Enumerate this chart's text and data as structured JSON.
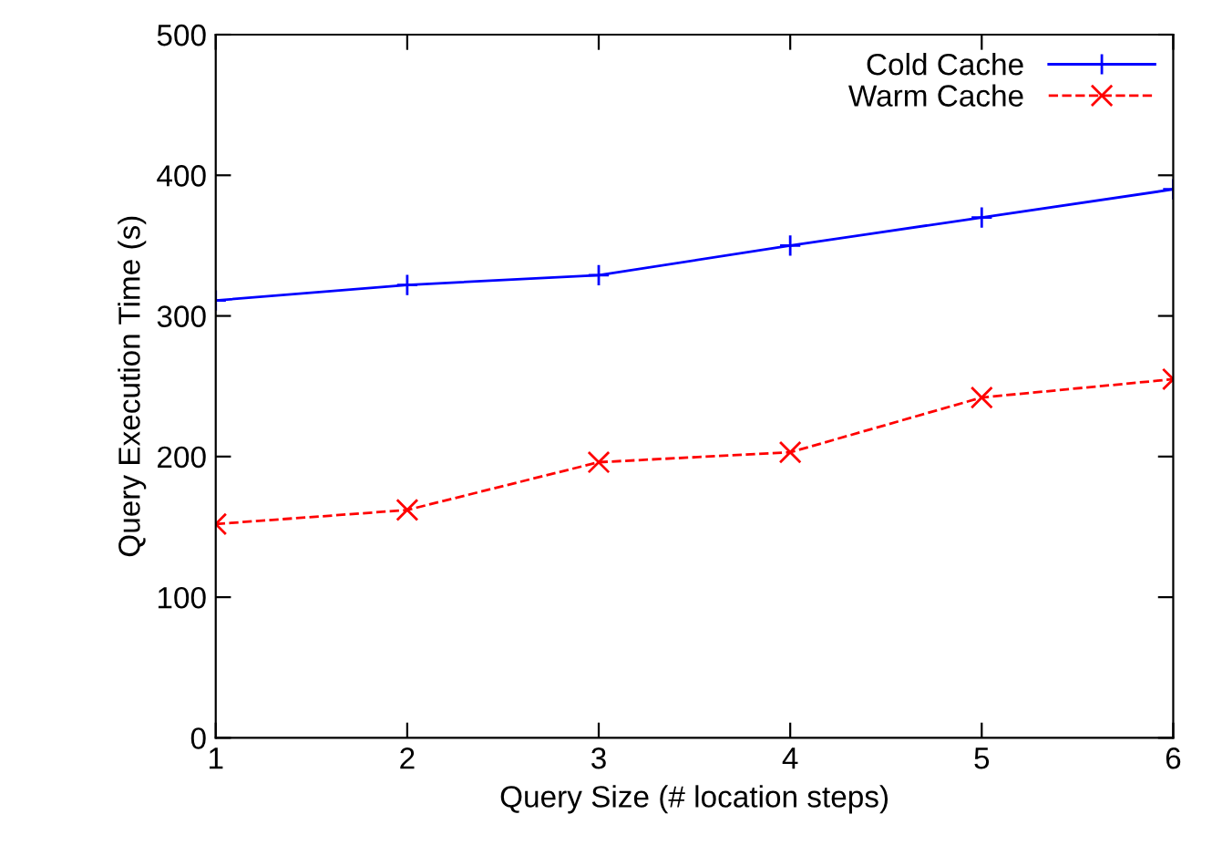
{
  "chart_data": {
    "type": "line",
    "xlabel": "Query Size (# location steps)",
    "ylabel": "Query Execution Time (s)",
    "x": [
      1,
      2,
      3,
      4,
      5,
      6
    ],
    "series": [
      {
        "name": "Cold Cache",
        "color": "#0000ff",
        "marker": "plus",
        "line_style": "solid",
        "values": [
          311,
          322,
          329,
          350,
          370,
          390
        ]
      },
      {
        "name": "Warm Cache",
        "color": "#ff0000",
        "marker": "cross",
        "line_style": "dashed",
        "values": [
          152,
          162,
          196,
          203,
          242,
          255
        ]
      }
    ],
    "xlim": [
      1,
      6
    ],
    "xticks": [
      1,
      2,
      3,
      4,
      5,
      6
    ],
    "ylim": [
      0,
      500
    ],
    "yticks": [
      0,
      100,
      200,
      300,
      400,
      500
    ],
    "grid": false,
    "legend": "top right"
  }
}
